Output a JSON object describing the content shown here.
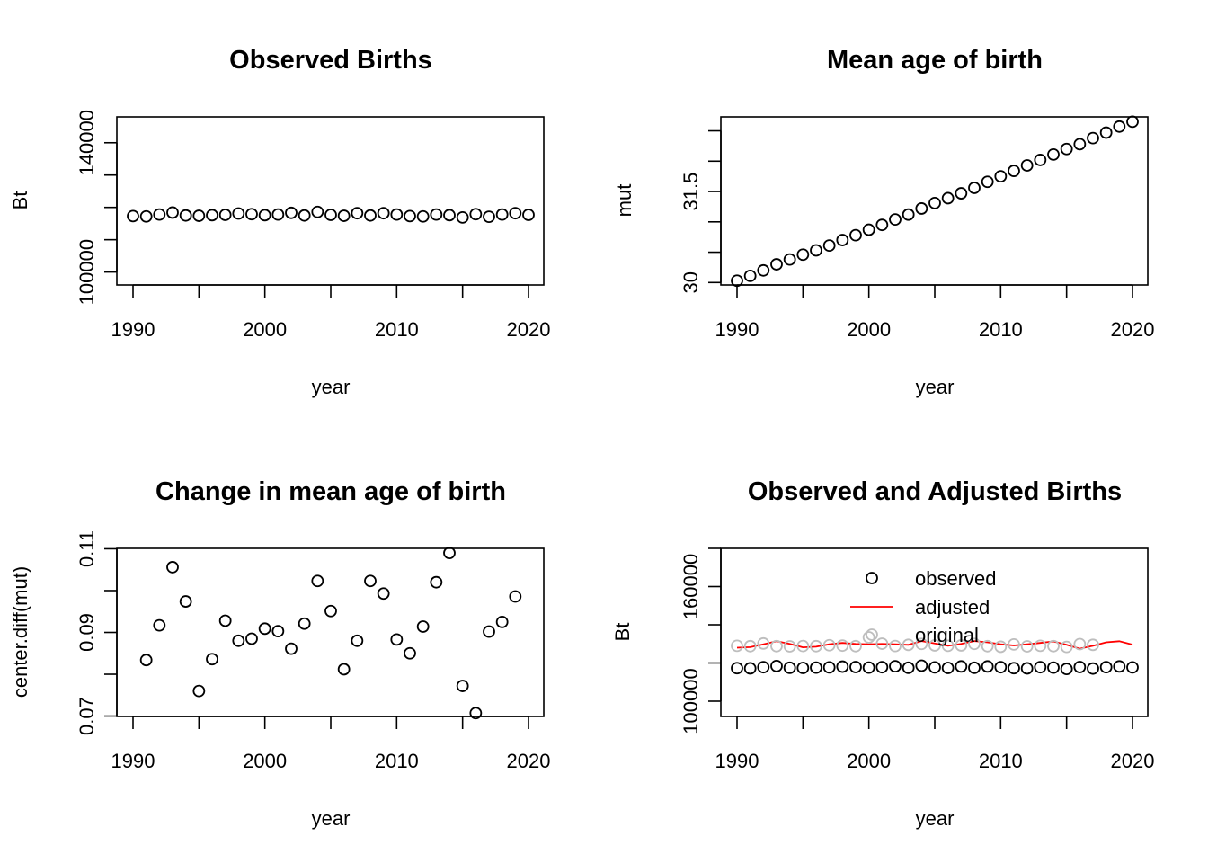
{
  "chart_data": [
    {
      "id": "observed-births",
      "type": "scatter",
      "title": "Observed Births",
      "xlabel": "year",
      "ylabel": "Bt",
      "xlim": [
        1990,
        2020
      ],
      "ylim": [
        96000,
        148000
      ],
      "xticks": [
        1990,
        2000,
        2010,
        2020
      ],
      "yticks": [
        100000,
        140000
      ],
      "yticks_minor": [
        110000,
        120000,
        130000
      ],
      "x": [
        1990,
        1991,
        1992,
        1993,
        1994,
        1995,
        1996,
        1997,
        1998,
        1999,
        2000,
        2001,
        2002,
        2003,
        2004,
        2005,
        2006,
        2007,
        2008,
        2009,
        2010,
        2011,
        2012,
        2013,
        2014,
        2015,
        2016,
        2017,
        2018,
        2019,
        2020
      ],
      "y": [
        117300,
        117200,
        117800,
        118400,
        117500,
        117400,
        117600,
        117700,
        118100,
        117900,
        117600,
        117800,
        118300,
        117500,
        118600,
        117700,
        117400,
        118200,
        117500,
        118200,
        117800,
        117300,
        117200,
        117800,
        117600,
        116900,
        117900,
        117100,
        117800,
        118200,
        117700
      ],
      "series_color": "#000000"
    },
    {
      "id": "mean-age",
      "type": "scatter",
      "title": "Mean age of birth",
      "xlabel": "year",
      "ylabel": "mut",
      "xlim": [
        1990,
        2020
      ],
      "ylim": [
        29.96,
        32.73
      ],
      "xticks": [
        1990,
        2000,
        2010,
        2020
      ],
      "yticks": [
        30.0,
        31.5
      ],
      "yticks_minor": [
        30.5,
        31.0,
        32.0,
        32.5
      ],
      "x": [
        1990,
        1991,
        1992,
        1993,
        1994,
        1995,
        1996,
        1997,
        1998,
        1999,
        2000,
        2001,
        2002,
        2003,
        2004,
        2005,
        2006,
        2007,
        2008,
        2009,
        2010,
        2011,
        2012,
        2013,
        2014,
        2015,
        2016,
        2017,
        2018,
        2019,
        2020
      ],
      "y": [
        30.03,
        30.11,
        30.2,
        30.3,
        30.38,
        30.46,
        30.53,
        30.61,
        30.7,
        30.78,
        30.87,
        30.95,
        31.04,
        31.12,
        31.22,
        31.31,
        31.39,
        31.47,
        31.56,
        31.66,
        31.75,
        31.84,
        31.93,
        32.02,
        32.11,
        32.2,
        32.28,
        32.38,
        32.47,
        32.57,
        32.65
      ],
      "series_color": "#000000"
    },
    {
      "id": "change-mean-age",
      "type": "scatter",
      "title": "Change in mean age of birth",
      "xlabel": "year",
      "ylabel": "center.diff(mut)",
      "xlim": [
        1990,
        2020
      ],
      "ylim": [
        0.0699,
        0.1101
      ],
      "xticks": [
        1990,
        2000,
        2010,
        2020
      ],
      "yticks": [
        0.07,
        0.09,
        0.11
      ],
      "ytick_labels": [
        "0.07",
        "0.09",
        "0.11"
      ],
      "yticks_minor": [
        0.08,
        0.1
      ],
      "x": [
        1991,
        1992,
        1993,
        1994,
        1995,
        1996,
        1997,
        1998,
        1999,
        2000,
        2001,
        2002,
        2003,
        2004,
        2005,
        2006,
        2007,
        2008,
        2009,
        2010,
        2011,
        2012,
        2013,
        2014,
        2015,
        2016,
        2017,
        2018,
        2019
      ],
      "y": [
        0.0834,
        0.0917,
        0.1056,
        0.0974,
        0.076,
        0.0836,
        0.0928,
        0.088,
        0.0885,
        0.0909,
        0.0903,
        0.0861,
        0.0921,
        0.1023,
        0.0951,
        0.0812,
        0.088,
        0.1023,
        0.0993,
        0.0883,
        0.085,
        0.0914,
        0.102,
        0.109,
        0.0772,
        0.0707,
        0.0902,
        0.0925,
        0.0986
      ],
      "series_color": "#000000"
    },
    {
      "id": "observed-adjusted",
      "type": "line",
      "title": "Observed and Adjusted Births",
      "xlabel": "year",
      "ylabel": "Bt",
      "xlim": [
        1990,
        2020
      ],
      "ylim": [
        92000,
        180000
      ],
      "xticks": [
        1990,
        2000,
        2010,
        2020
      ],
      "yticks": [
        100000,
        160000
      ],
      "yticks_minor": [
        120000,
        140000,
        180000
      ],
      "legend": {
        "position": "top",
        "entries": [
          {
            "label": "observed",
            "kind": "point",
            "color": "#000000"
          },
          {
            "label": "adjusted",
            "kind": "line",
            "color": "#ff0000"
          },
          {
            "label": "original",
            "kind": "point",
            "color": "#bebebe"
          }
        ]
      },
      "series": [
        {
          "name": "observed",
          "kind": "point",
          "color": "#000000",
          "x": [
            1990,
            1991,
            1992,
            1993,
            1994,
            1995,
            1996,
            1997,
            1998,
            1999,
            2000,
            2001,
            2002,
            2003,
            2004,
            2005,
            2006,
            2007,
            2008,
            2009,
            2010,
            2011,
            2012,
            2013,
            2014,
            2015,
            2016,
            2017,
            2018,
            2019,
            2020
          ],
          "y": [
            117300,
            117200,
            117800,
            118400,
            117500,
            117400,
            117600,
            117700,
            118100,
            117900,
            117600,
            117800,
            118300,
            117500,
            118600,
            117700,
            117400,
            118200,
            117500,
            118200,
            117800,
            117300,
            117200,
            117800,
            117600,
            116900,
            117900,
            117100,
            117800,
            118200,
            117700
          ]
        },
        {
          "name": "adjusted",
          "kind": "line",
          "color": "#ff0000",
          "x": [
            1990,
            1991,
            1992,
            1993,
            1994,
            1995,
            1996,
            1997,
            1998,
            1999,
            2000,
            2001,
            2002,
            2003,
            2004,
            2005,
            2006,
            2007,
            2008,
            2009,
            2010,
            2011,
            2012,
            2013,
            2014,
            2015,
            2016,
            2017,
            2018,
            2019,
            2020
          ],
          "y": [
            128000,
            128300,
            129800,
            131400,
            130000,
            128200,
            128500,
            129800,
            130500,
            130000,
            129800,
            130000,
            129800,
            129500,
            131500,
            130200,
            129000,
            130000,
            131500,
            130800,
            129800,
            129200,
            129800,
            130500,
            131300,
            129500,
            127500,
            129000,
            130800,
            131400,
            129600
          ]
        },
        {
          "name": "original",
          "kind": "point",
          "color": "#bebebe",
          "x": [
            1990,
            1991,
            1992,
            1993,
            1994,
            1995,
            1996,
            1997,
            1998,
            1999,
            2000,
            2001,
            2002,
            2003,
            2004,
            2005,
            2006,
            2007,
            2008,
            2009,
            2010,
            2011,
            2012,
            2013,
            2014,
            2015,
            2016,
            2017
          ],
          "y": [
            129000,
            128800,
            130200,
            128800,
            128700,
            128900,
            128800,
            129300,
            129100,
            128800,
            133400,
            130100,
            128900,
            129500,
            130000,
            129200,
            129000,
            129200,
            130000,
            128800,
            128500,
            129700,
            128700,
            129000,
            128800,
            128400,
            129900,
            129500
          ]
        }
      ]
    }
  ]
}
